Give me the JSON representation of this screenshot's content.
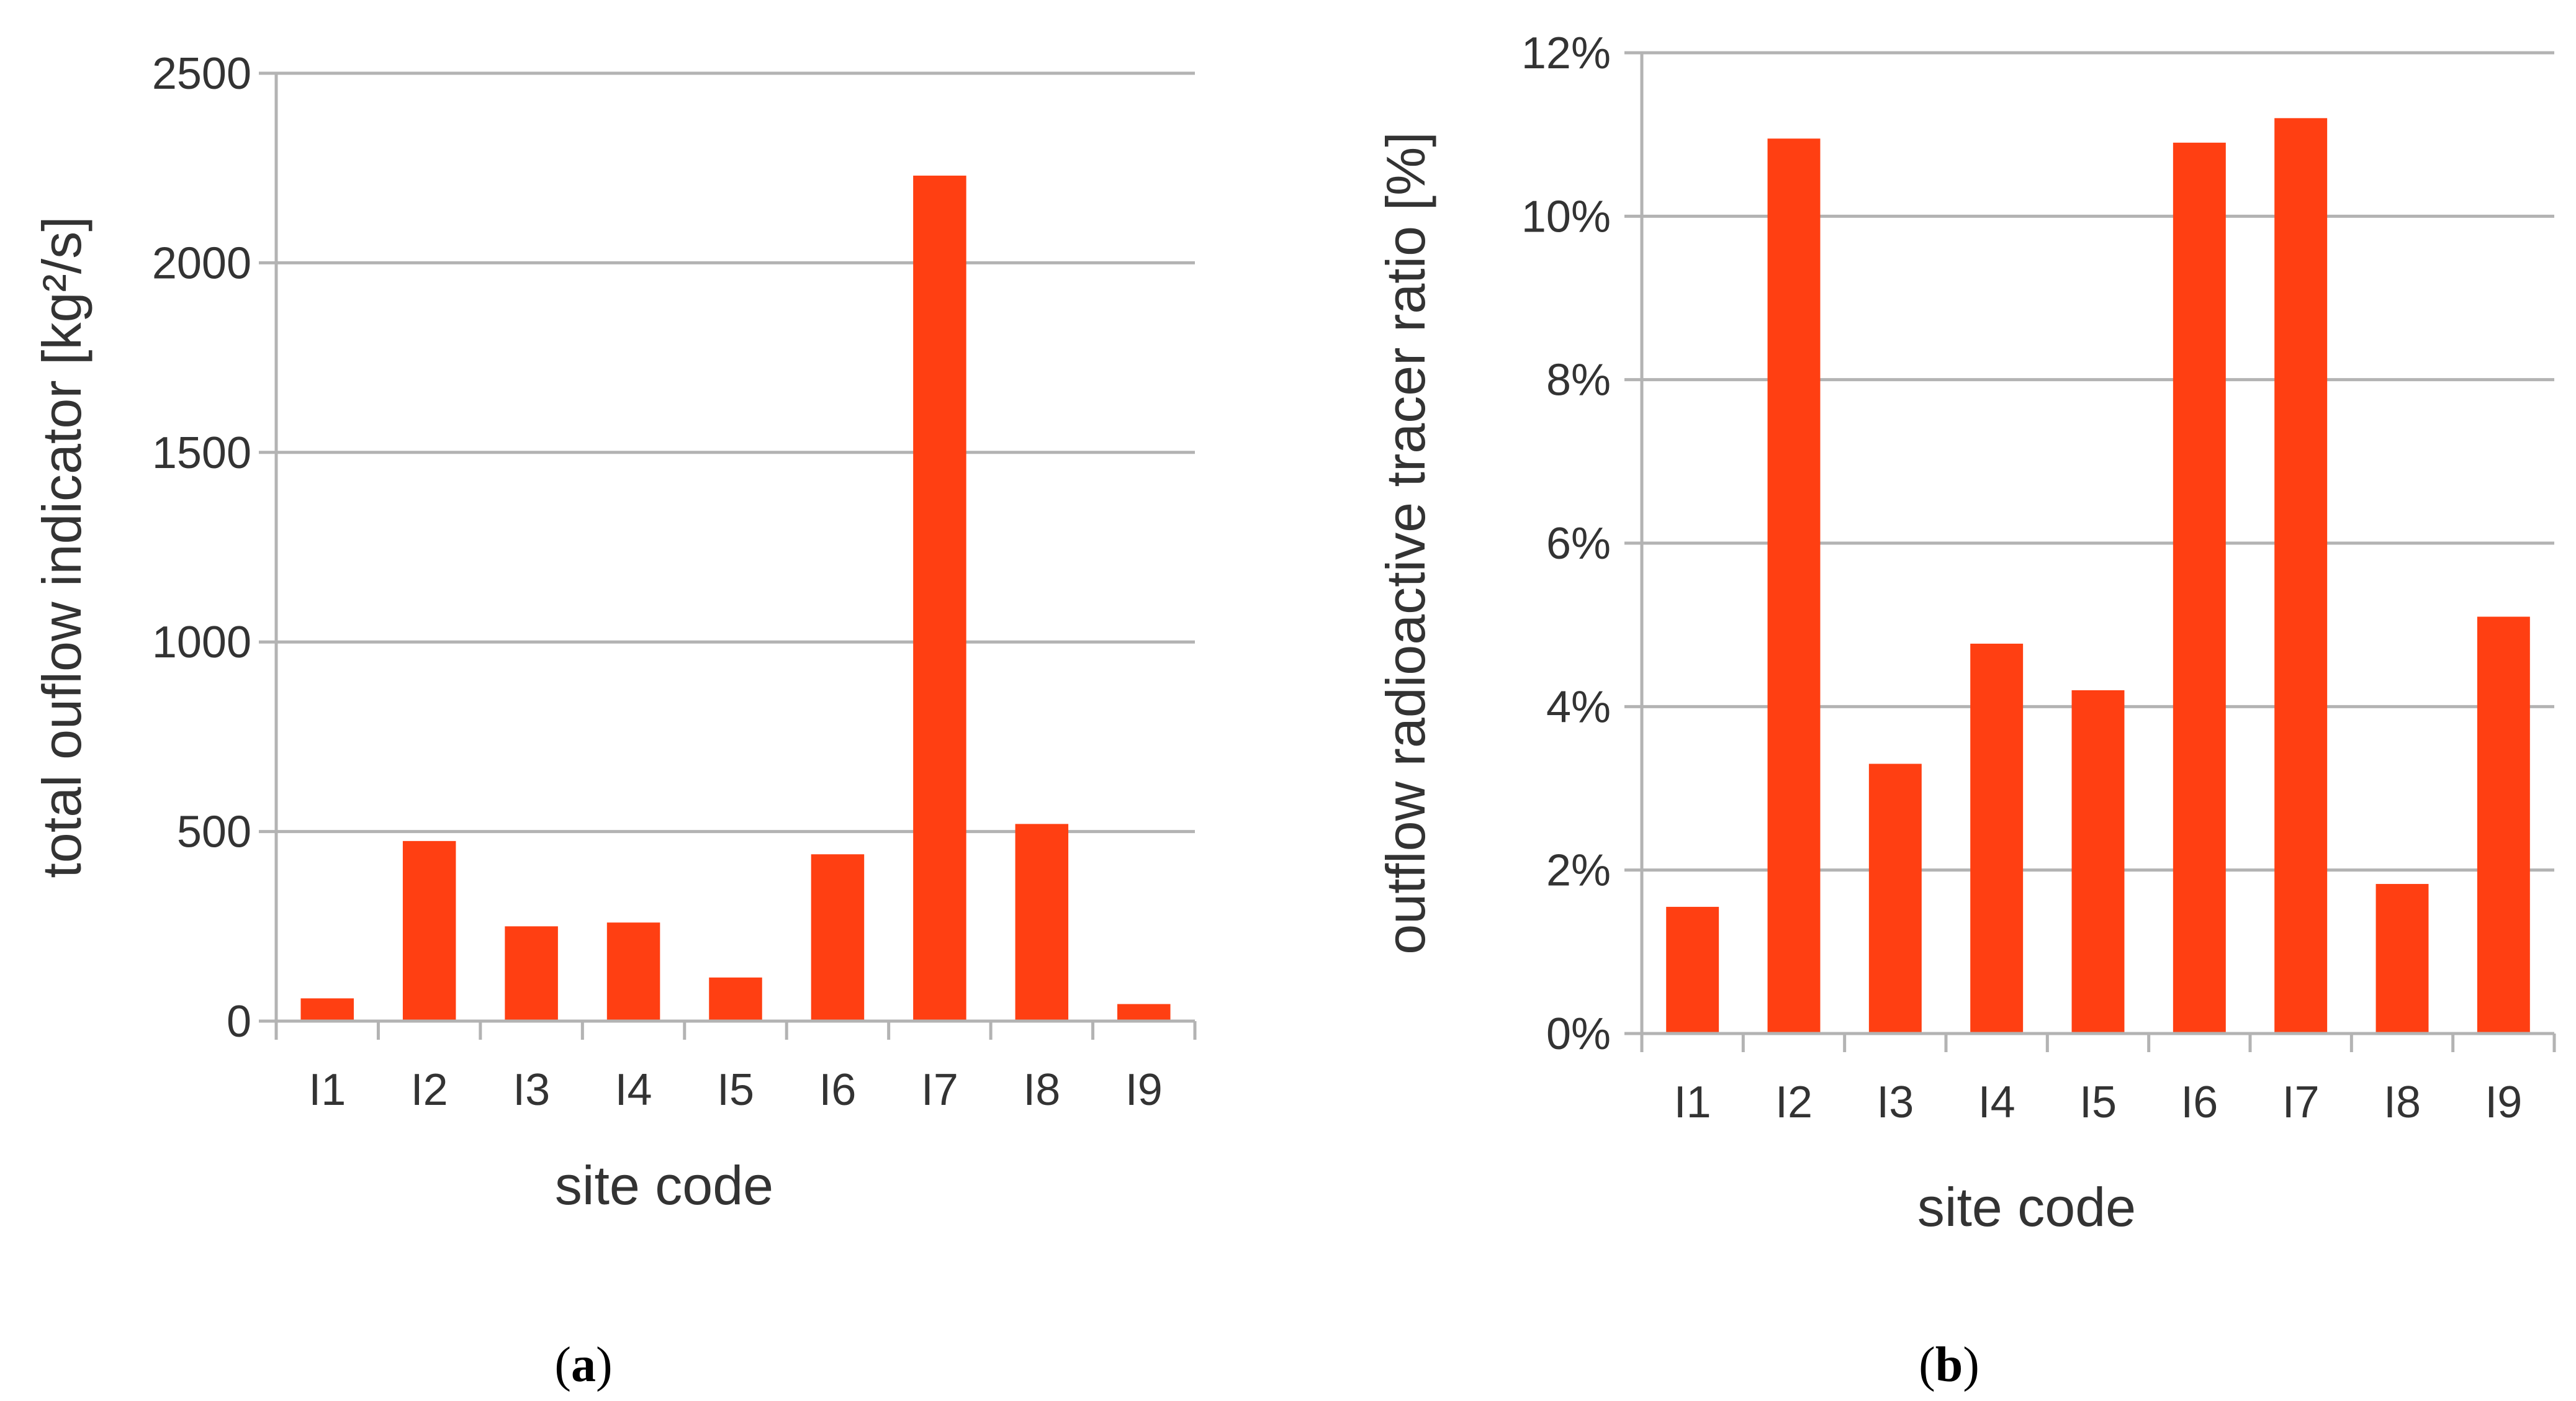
{
  "chart_data": [
    {
      "type": "bar",
      "panel_label": "a",
      "xlabel": "site code",
      "ylabel": "total ouflow indicator [kg²/s]",
      "categories": [
        "I1",
        "I2",
        "I3",
        "I4",
        "I5",
        "I6",
        "I7",
        "I8",
        "I9"
      ],
      "values": [
        60,
        475,
        250,
        260,
        115,
        440,
        2230,
        520,
        45
      ],
      "ylim": [
        0,
        2500
      ],
      "yticks": [
        0,
        500,
        1000,
        1500,
        2000,
        2500
      ],
      "ytick_labels": [
        "0",
        "500",
        "1000",
        "1500",
        "2000",
        "2500"
      ],
      "grid": true,
      "bar_color": "#ff3f12"
    },
    {
      "type": "bar",
      "panel_label": "b",
      "xlabel": "site code",
      "ylabel": "outflow radioactive tracer ratio [%]",
      "categories": [
        "I1",
        "I2",
        "I3",
        "I4",
        "I5",
        "I6",
        "I7",
        "I8",
        "I9"
      ],
      "values": [
        1.55,
        10.95,
        3.3,
        4.77,
        4.2,
        10.9,
        11.2,
        1.83,
        5.1
      ],
      "ylim": [
        0,
        12
      ],
      "yticks": [
        0,
        2,
        4,
        6,
        8,
        10,
        12
      ],
      "ytick_labels": [
        "0%",
        "2%",
        "4%",
        "6%",
        "8%",
        "10%",
        "12%"
      ],
      "grid": true,
      "bar_color": "#ff3f12"
    }
  ],
  "captions": {
    "a": {
      "open": "(",
      "letter": "a",
      "close": ")"
    },
    "b": {
      "open": "(",
      "letter": "b",
      "close": ")"
    }
  }
}
